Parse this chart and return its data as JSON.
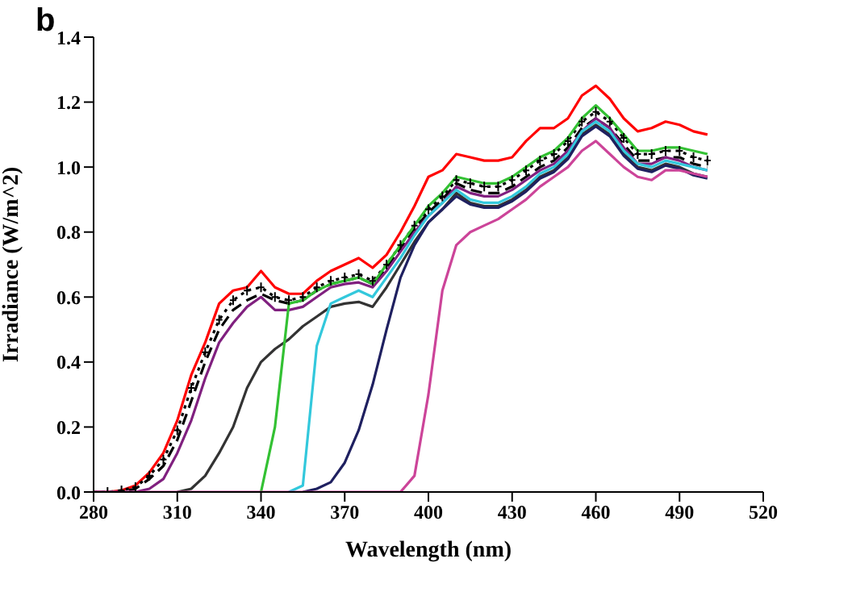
{
  "chart_data": {
    "type": "line",
    "title": "b",
    "xlabel": "Wavelength (nm)",
    "ylabel": "Irradiance (W/m^2)",
    "xlim": [
      280,
      520
    ],
    "xticks": [
      280,
      310,
      340,
      370,
      400,
      430,
      460,
      490,
      520
    ],
    "ylim": [
      0,
      1.4
    ],
    "yticks": [
      {
        "value": 0,
        "label": "0.0"
      },
      0.2,
      0.4,
      0.6,
      0.8,
      {
        "value": 1,
        "label": "1.0"
      },
      1.2,
      1.4
    ],
    "x": [
      280,
      285,
      290,
      295,
      300,
      305,
      310,
      315,
      320,
      325,
      330,
      335,
      340,
      345,
      350,
      355,
      360,
      365,
      370,
      375,
      380,
      385,
      390,
      395,
      400,
      405,
      410,
      415,
      420,
      425,
      430,
      435,
      440,
      445,
      450,
      455,
      460,
      465,
      470,
      475,
      480,
      485,
      490,
      495,
      500
    ],
    "series": [
      {
        "color": "#ff0000",
        "line_style": "solid",
        "marker": "none",
        "values": [
          0,
          0,
          0.005,
          0.02,
          0.06,
          0.12,
          0.22,
          0.36,
          0.46,
          0.58,
          0.62,
          0.63,
          0.68,
          0.63,
          0.61,
          0.61,
          0.65,
          0.68,
          0.7,
          0.72,
          0.69,
          0.73,
          0.8,
          0.88,
          0.97,
          0.99,
          1.04,
          1.03,
          1.02,
          1.02,
          1.03,
          1.08,
          1.12,
          1.12,
          1.15,
          1.22,
          1.25,
          1.21,
          1.15,
          1.11,
          1.12,
          1.14,
          1.13,
          1.11,
          1.1
        ]
      },
      {
        "color": "#000000",
        "line_style": "dotted",
        "marker": "cross",
        "values": [
          0,
          0,
          0.005,
          0.015,
          0.05,
          0.1,
          0.19,
          0.32,
          0.43,
          0.53,
          0.59,
          0.62,
          0.63,
          0.6,
          0.59,
          0.6,
          0.63,
          0.65,
          0.66,
          0.67,
          0.65,
          0.7,
          0.76,
          0.82,
          0.87,
          0.91,
          0.96,
          0.95,
          0.94,
          0.94,
          0.96,
          0.99,
          1.02,
          1.04,
          1.08,
          1.14,
          1.17,
          1.14,
          1.09,
          1.04,
          1.04,
          1.05,
          1.05,
          1.03,
          1.02
        ]
      },
      {
        "color": "#000000",
        "line_style": "dashed",
        "marker": "none",
        "values": [
          0,
          0,
          0,
          0.01,
          0.04,
          0.08,
          0.16,
          0.28,
          0.4,
          0.5,
          0.56,
          0.59,
          0.61,
          0.59,
          0.58,
          0.59,
          0.62,
          0.64,
          0.65,
          0.66,
          0.64,
          0.69,
          0.75,
          0.81,
          0.86,
          0.9,
          0.95,
          0.93,
          0.92,
          0.92,
          0.94,
          0.97,
          1,
          1.02,
          1.06,
          1.12,
          1.15,
          1.12,
          1.07,
          1.02,
          1.02,
          1.03,
          1.03,
          1.01,
          1
        ]
      },
      {
        "color": "#80207f",
        "line_style": "solid",
        "marker": "none",
        "values": [
          0,
          0,
          0,
          0,
          0.01,
          0.04,
          0.12,
          0.22,
          0.35,
          0.46,
          0.52,
          0.57,
          0.6,
          0.56,
          0.56,
          0.57,
          0.6,
          0.63,
          0.64,
          0.645,
          0.63,
          0.68,
          0.74,
          0.8,
          0.85,
          0.89,
          0.94,
          0.92,
          0.91,
          0.91,
          0.93,
          0.96,
          0.99,
          1.01,
          1.05,
          1.11,
          1.15,
          1.12,
          1.06,
          1.01,
          1.01,
          1.03,
          1.02,
          1,
          0.99
        ]
      },
      {
        "color": "#333333",
        "line_style": "solid",
        "marker": "none",
        "values": [
          null,
          null,
          null,
          null,
          null,
          null,
          0,
          0.01,
          0.05,
          0.12,
          0.2,
          0.32,
          0.4,
          0.44,
          0.47,
          0.51,
          0.54,
          0.57,
          0.58,
          0.585,
          0.57,
          0.63,
          0.7,
          0.77,
          0.83,
          0.87,
          0.92,
          0.89,
          0.88,
          0.88,
          0.9,
          0.93,
          0.97,
          0.99,
          1.03,
          1.1,
          1.13,
          1.1,
          1.04,
          1,
          0.99,
          1.01,
          1,
          0.98,
          0.97
        ]
      },
      {
        "color": "#33c133",
        "line_style": "solid",
        "marker": "none",
        "values": [
          null,
          null,
          null,
          null,
          null,
          null,
          null,
          null,
          null,
          null,
          null,
          null,
          0,
          0.2,
          0.58,
          0.59,
          0.62,
          0.64,
          0.65,
          0.66,
          0.64,
          0.7,
          0.76,
          0.82,
          0.88,
          0.92,
          0.97,
          0.96,
          0.95,
          0.95,
          0.97,
          1,
          1.03,
          1.05,
          1.09,
          1.15,
          1.19,
          1.15,
          1.1,
          1.05,
          1.05,
          1.06,
          1.06,
          1.05,
          1.04
        ]
      },
      {
        "color": "#33c8dc",
        "line_style": "solid",
        "marker": "none",
        "values": [
          null,
          null,
          null,
          null,
          null,
          null,
          null,
          null,
          null,
          null,
          null,
          null,
          null,
          null,
          0,
          0.02,
          0.45,
          0.58,
          0.6,
          0.62,
          0.6,
          0.66,
          0.72,
          0.79,
          0.85,
          0.89,
          0.93,
          0.9,
          0.89,
          0.89,
          0.91,
          0.94,
          0.98,
          1,
          1.04,
          1.11,
          1.14,
          1.11,
          1.05,
          1.01,
          1,
          1.02,
          1.01,
          1,
          0.99
        ]
      },
      {
        "color": "#1f2060",
        "line_style": "solid",
        "marker": "none",
        "values": [
          null,
          null,
          null,
          null,
          null,
          null,
          null,
          null,
          null,
          null,
          null,
          null,
          null,
          null,
          null,
          0,
          0.01,
          0.03,
          0.09,
          0.19,
          0.33,
          0.5,
          0.66,
          0.76,
          0.83,
          0.87,
          0.91,
          0.885,
          0.875,
          0.875,
          0.895,
          0.925,
          0.965,
          0.985,
          1.025,
          1.095,
          1.125,
          1.095,
          1.035,
          0.995,
          0.985,
          1.005,
          0.995,
          0.975,
          0.965
        ]
      },
      {
        "color": "#cc4499",
        "line_style": "solid",
        "marker": "none",
        "values": [
          0,
          0,
          0,
          0,
          0,
          0,
          0,
          0,
          0,
          0,
          0,
          0,
          0,
          0,
          0,
          0,
          0,
          0,
          0,
          0,
          0,
          0,
          0,
          0.05,
          0.3,
          0.62,
          0.76,
          0.8,
          0.82,
          0.84,
          0.87,
          0.9,
          0.94,
          0.97,
          1,
          1.05,
          1.08,
          1.04,
          1,
          0.97,
          0.96,
          0.99,
          0.99,
          0.98,
          0.97
        ]
      }
    ]
  }
}
